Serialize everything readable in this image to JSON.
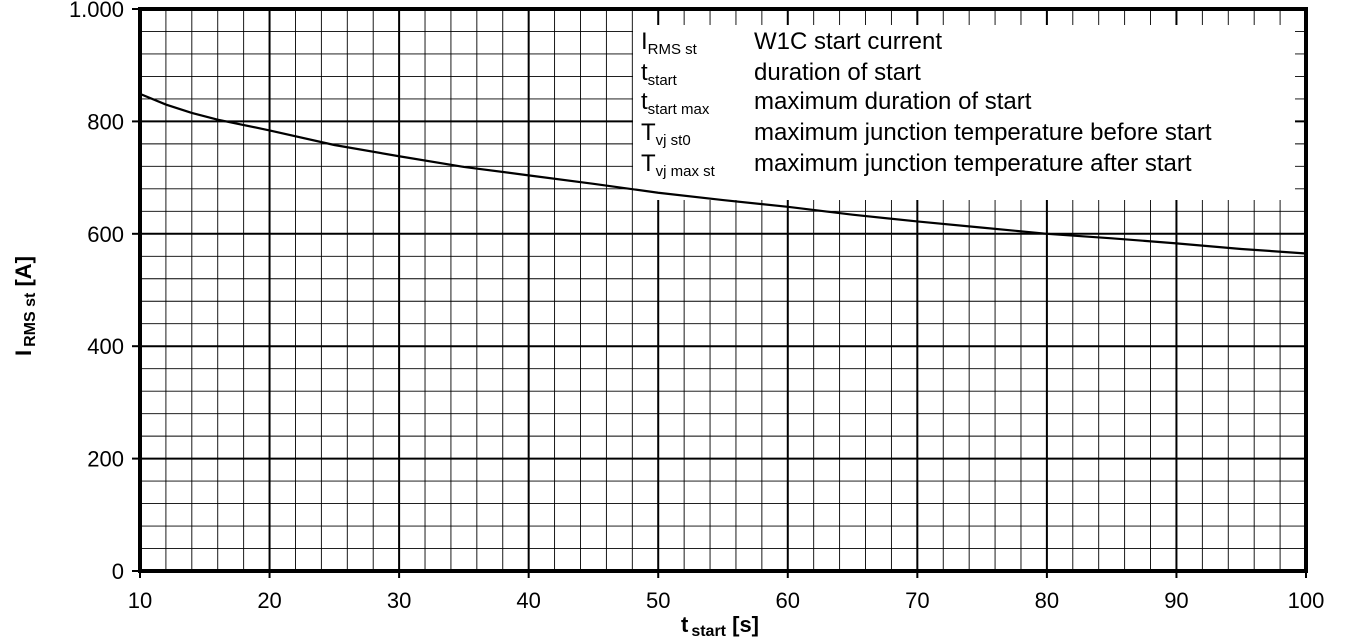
{
  "chart_data": {
    "type": "line",
    "title": "",
    "xlabel": {
      "main": "t",
      "sub": "start",
      "unit": " [s]"
    },
    "ylabel": {
      "main": "I",
      "sub": "RMS st",
      "unit": " [A]"
    },
    "xlim": [
      10,
      100
    ],
    "ylim": [
      0,
      1000
    ],
    "x_ticks": [
      10,
      20,
      30,
      40,
      50,
      60,
      70,
      80,
      90,
      100
    ],
    "y_ticks": [
      0,
      200,
      400,
      600,
      800,
      1000
    ],
    "x_tick_labels": [
      "10",
      "20",
      "30",
      "40",
      "50",
      "60",
      "70",
      "80",
      "90",
      "100"
    ],
    "y_tick_labels": [
      "0",
      "200",
      "400",
      "600",
      "800",
      "1.000"
    ],
    "grid": {
      "major": true,
      "minor": true,
      "x_minor_step": 2,
      "y_minor_step": 40
    },
    "series": [
      {
        "color": "#000000",
        "x": [
          10,
          12,
          14,
          16,
          20,
          25,
          30,
          35,
          40,
          45,
          50,
          55,
          60,
          65,
          70,
          75,
          80,
          85,
          90,
          95,
          100
        ],
        "y": [
          849,
          830,
          815,
          803,
          784,
          758,
          738,
          719,
          704,
          689,
          673,
          660,
          648,
          634,
          622,
          611,
          600,
          592,
          583,
          573,
          565
        ]
      }
    ],
    "legend": {
      "placement": "top-right",
      "entries": [
        {
          "symbol": "I",
          "sub": "RMS st",
          "desc": "W1C start current"
        },
        {
          "symbol": "t",
          "sub": "start",
          "desc": "duration of start"
        },
        {
          "symbol": "t",
          "sub": "start max",
          "desc": "maximum  duration of start"
        },
        {
          "symbol": "T",
          "sub": "vj st0",
          "desc": "maximum  junction temperature before start"
        },
        {
          "symbol": "T",
          "sub": "vj max st",
          "desc": "maximum  junction temperature after start"
        }
      ]
    }
  }
}
